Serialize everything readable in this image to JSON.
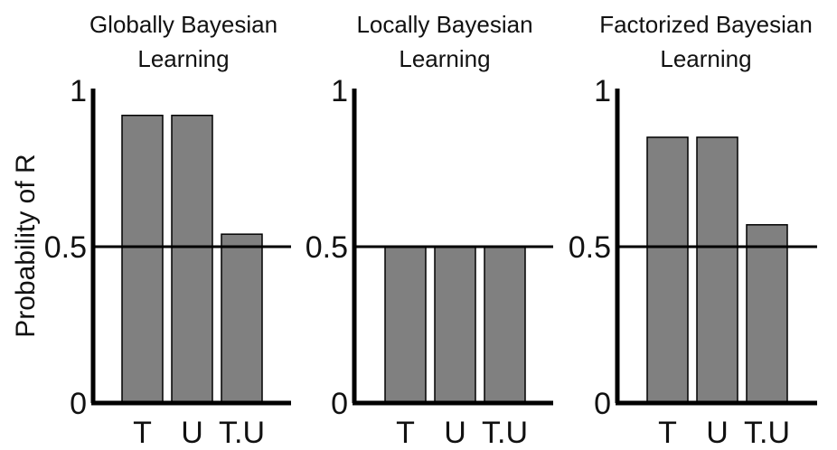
{
  "figure": {
    "ylabel": "Probability of R"
  },
  "chart_data": [
    {
      "type": "bar",
      "title_lines": [
        "Globally Bayesian",
        "Learning"
      ],
      "categories": [
        "T",
        "U",
        "T.U"
      ],
      "values": [
        0.92,
        0.92,
        0.54
      ],
      "ylim": [
        0,
        1
      ],
      "yticks": [
        "1",
        "0.5",
        "0"
      ],
      "reference_line": 0.5
    },
    {
      "type": "bar",
      "title_lines": [
        "Locally Bayesian",
        "Learning"
      ],
      "categories": [
        "T",
        "U",
        "T.U"
      ],
      "values": [
        0.5,
        0.5,
        0.5
      ],
      "ylim": [
        0,
        1
      ],
      "yticks": [
        "1",
        "0.5",
        "0"
      ],
      "reference_line": 0.5
    },
    {
      "type": "bar",
      "title_lines": [
        "Factorized Bayesian",
        "Learning"
      ],
      "categories": [
        "T",
        "U",
        "T.U"
      ],
      "values": [
        0.85,
        0.85,
        0.57
      ],
      "ylim": [
        0,
        1
      ],
      "yticks": [
        "1",
        "0.5",
        "0"
      ],
      "reference_line": 0.5
    }
  ]
}
